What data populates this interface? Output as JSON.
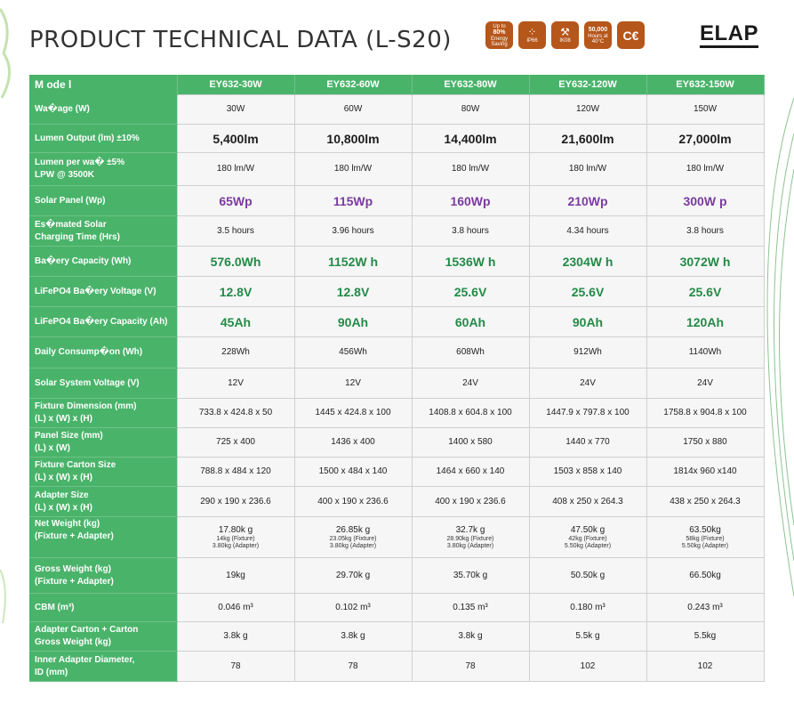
{
  "header": {
    "title": "PRODUCT TECHNICAL DATA (L-S20)",
    "badges": [
      {
        "icon": "energy-saving-icon",
        "lines": [
          "Up to",
          "80%",
          "Energy",
          "Saving"
        ]
      },
      {
        "icon": "water-drops-icon",
        "symbol": "⁘",
        "label": "IP66"
      },
      {
        "icon": "hammer-icon",
        "symbol": "⚒",
        "label": "IK08"
      },
      {
        "icon": "lifetime-icon",
        "lines": [
          "50,000",
          "Hours at",
          "40°C"
        ]
      },
      {
        "icon": "ce-mark-icon",
        "label": "C€"
      }
    ],
    "brand": "ELAP",
    "badge_color": "#b5561b"
  },
  "colors": {
    "header_green": "#4ab36a",
    "purple": "#7a3ba0",
    "green_text": "#238a47"
  },
  "table": {
    "header": [
      "M ode l",
      "EY632-30W",
      "EY632-60W",
      "EY632-80W",
      "EY632-120W",
      "EY632-150W"
    ],
    "rows": [
      {
        "label": "Wa�age (W)",
        "style": "",
        "values": [
          "30W",
          "60W",
          "80W",
          "120W",
          "150W"
        ]
      },
      {
        "label": "Lumen Output (lm) ±10%",
        "style": "bold",
        "values": [
          "5,400lm",
          "10,800lm",
          "14,400lm",
          "21,600lm",
          "27,000lm"
        ]
      },
      {
        "label": "Lumen per wa� ±5%\nLPW @ 3500K",
        "style": "",
        "values": [
          "180 lm/W",
          "180 lm/W",
          "180 lm/W",
          "180 lm/W",
          "180 lm/W"
        ]
      },
      {
        "label": "Solar Panel (Wp)",
        "style": "purple",
        "values": [
          "65Wp",
          "115Wp",
          "160Wp",
          "210Wp",
          "300W p"
        ]
      },
      {
        "label": "Es�mated Solar\nCharging Time (Hrs)",
        "style": "",
        "values": [
          "3.5 hours",
          "3.96 hours",
          "3.8 hours",
          "4.34 hours",
          "3.8 hours"
        ]
      },
      {
        "label": "Ba�ery Capacity (Wh)",
        "style": "green",
        "values": [
          "576.0Wh",
          "1152W h",
          "1536W h",
          "2304W h",
          "3072W h"
        ]
      },
      {
        "label": "LiFePO4 Ba�ery Voltage (V)",
        "style": "green",
        "values": [
          "12.8V",
          "12.8V",
          "25.6V",
          "25.6V",
          "25.6V"
        ]
      },
      {
        "label": "LiFePO4 Ba�ery Capacity (Ah)",
        "style": "green",
        "values": [
          "45Ah",
          "90Ah",
          "60Ah",
          "90Ah",
          "120Ah"
        ]
      },
      {
        "label": "Daily Consump�on (Wh)",
        "style": "",
        "values": [
          "228Wh",
          "456Wh",
          "608Wh",
          "912Wh",
          "1140Wh"
        ]
      },
      {
        "label": "Solar System Voltage (V)",
        "style": "",
        "values": [
          "12V",
          "12V",
          "24V",
          "24V",
          "24V"
        ]
      },
      {
        "label": "Fixture Dimension (mm)\n(L) x (W) x (H)",
        "style": "",
        "values": [
          "733.8 x 424.8 x 50",
          "1445 x 424.8 x 100",
          "1408.8 x 604.8 x 100",
          "1447.9 x 797.8 x 100",
          "1758.8 x 904.8 x 100"
        ]
      },
      {
        "label": "Panel Size (mm)\n(L) x (W)",
        "style": "",
        "values": [
          "725 x 400",
          "1436 x 400",
          "1400 x 580",
          "1440 x 770",
          "1750 x 880"
        ]
      },
      {
        "label": "Fixture Carton Size\n(L) x (W) x (H)",
        "style": "",
        "values": [
          "788.8 x 484 x 120",
          "1500 x 484 x 140",
          "1464 x 660 x 140",
          "1503 x 858 x 140",
          "1814x 960 x140"
        ]
      },
      {
        "label": "Adapter Size\n(L) x (W) x (H)",
        "style": "",
        "values": [
          "290 x 190 x 236.6",
          "400 x 190 x 236.6",
          "400 x 190 x 236.6",
          "408 x 250 x 264.3",
          "438 x 250 x 264.3"
        ]
      }
    ],
    "net_weight": {
      "label": "Net Weight (kg)\n(Fixture + Adapter)",
      "values": [
        {
          "main": "17.80k g",
          "fixture": "14kg (Fixture)",
          "adapter": "3.80kg (Adapter)"
        },
        {
          "main": "26.85k g",
          "fixture": "23.05kg (Fixture)",
          "adapter": "3.80kg (Adapter)"
        },
        {
          "main": "32.7k g",
          "fixture": "28.90kg (Fixture)",
          "adapter": "3.80kg (Adapter)"
        },
        {
          "main": "47.50k g",
          "fixture": "42kg (Fixture)",
          "adapter": "5.50kg (Adapter)"
        },
        {
          "main": "63.50kg",
          "fixture": "58kg (Fixture)",
          "adapter": "5.50kg (Adapter)"
        }
      ]
    },
    "rows_after": [
      {
        "label": "Gross Weight (kg)\n(Fixture + Adapter)",
        "style": "",
        "values": [
          "19kg",
          "29.70k g",
          "35.70k g",
          "50.50k g",
          "66.50kg"
        ]
      },
      {
        "label": "CBM (m³)",
        "style": "",
        "values": [
          "0.046 m³",
          "0.102 m³",
          "0.135 m³",
          "0.180 m³",
          "0.243 m³"
        ]
      },
      {
        "label": "Adapter Carton + Carton\nGross Weight (kg)",
        "style": "",
        "values": [
          "3.8k g",
          "3.8k g",
          "3.8k g",
          "5.5k g",
          "5.5kg"
        ]
      },
      {
        "label": "Inner Adapter Diameter,\nID (mm)",
        "style": "",
        "values": [
          "78",
          "78",
          "78",
          "102",
          "102"
        ]
      }
    ]
  }
}
